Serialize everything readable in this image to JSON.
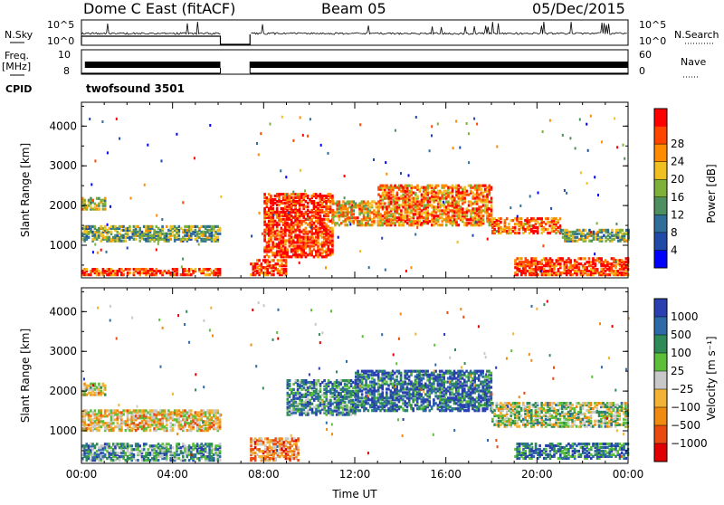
{
  "header": {
    "station": "Dome C East (fitACF)",
    "beam": "Beam 05",
    "date": "05/Dec/2015"
  },
  "strip_labels": {
    "nsky": "N.Sky",
    "nsky_ticks": [
      "10^5",
      "10^0"
    ],
    "nsearch": "N.Search",
    "freq": "Freq.",
    "freq_unit": "[MHz]",
    "freq_ticks": [
      "10",
      "8"
    ],
    "nave": "Nave",
    "nave_ticks": [
      "60",
      "0"
    ],
    "cpid": "CPID",
    "cpid_value": "twofsound 3501"
  },
  "colors": {
    "power": [
      "#0000ff",
      "#1f4aa8",
      "#2f6e9a",
      "#4e8f5f",
      "#7fb13a",
      "#f0c020",
      "#ff8c00",
      "#ff4500",
      "#ff0000"
    ],
    "velocity": [
      "#2a3fb0",
      "#2d6aa8",
      "#2e8b57",
      "#5cbf3a",
      "#c8c8c8",
      "#f2b233",
      "#f08a10",
      "#e84a10",
      "#e00000"
    ]
  },
  "chart_data": [
    {
      "type": "heatmap",
      "ylabel": "Slant Range [km]",
      "x_ticks": [
        "00:00",
        "04:00",
        "08:00",
        "12:00",
        "16:00",
        "20:00",
        "00:00"
      ],
      "xlim_hours": [
        0,
        24
      ],
      "y_ticks": [
        1000,
        2000,
        3000,
        4000
      ],
      "ylim_km": [
        180,
        4600
      ],
      "data_gap_hours": [
        6.1,
        7.4
      ],
      "colorbar": {
        "label": "Power [dB]",
        "ticks": [
          4,
          8,
          12,
          16,
          20,
          24,
          28
        ],
        "range": [
          0,
          30
        ]
      },
      "echo_regions": [
        {
          "t": [
            0.0,
            6.1
          ],
          "r": [
            250,
            400
          ],
          "level": 0.85
        },
        {
          "t": [
            0.0,
            6.1
          ],
          "r": [
            1100,
            1500
          ],
          "level": 0.45
        },
        {
          "t": [
            0.0,
            1.0
          ],
          "r": [
            1900,
            2200
          ],
          "level": 0.55
        },
        {
          "t": [
            7.4,
            9.0
          ],
          "r": [
            250,
            650
          ],
          "level": 0.85
        },
        {
          "t": [
            8.0,
            11.0
          ],
          "r": [
            700,
            2300
          ],
          "level": 0.9
        },
        {
          "t": [
            11.0,
            13.0
          ],
          "r": [
            1500,
            2100
          ],
          "level": 0.65
        },
        {
          "t": [
            13.0,
            18.0
          ],
          "r": [
            1500,
            2500
          ],
          "level": 0.75
        },
        {
          "t": [
            18.0,
            21.0
          ],
          "r": [
            1300,
            1700
          ],
          "level": 0.8
        },
        {
          "t": [
            21.0,
            24.0
          ],
          "r": [
            1100,
            1400
          ],
          "level": 0.45
        },
        {
          "t": [
            19.0,
            24.0
          ],
          "r": [
            250,
            700
          ],
          "level": 0.85
        }
      ]
    },
    {
      "type": "heatmap",
      "ylabel": "Slant Range [km]",
      "xlabel": "Time UT",
      "x_ticks": [
        "00:00",
        "04:00",
        "08:00",
        "12:00",
        "16:00",
        "20:00",
        "00:00"
      ],
      "xlim_hours": [
        0,
        24
      ],
      "y_ticks": [
        1000,
        2000,
        3000,
        4000
      ],
      "ylim_km": [
        180,
        4600
      ],
      "data_gap_hours": [
        6.1,
        7.4
      ],
      "colorbar": {
        "label": "Velocity [m s⁻¹]",
        "ticks": [
          "1000",
          "500",
          "100",
          "25",
          "−25",
          "−100",
          "−500",
          "−1000"
        ]
      },
      "echo_regions": [
        {
          "t": [
            0.0,
            6.1
          ],
          "r": [
            250,
            700
          ],
          "level": 0.3
        },
        {
          "t": [
            0.0,
            6.1
          ],
          "r": [
            1000,
            1500
          ],
          "level": 0.6
        },
        {
          "t": [
            0.0,
            1.0
          ],
          "r": [
            1900,
            2200
          ],
          "level": 0.55
        },
        {
          "t": [
            7.4,
            9.5
          ],
          "r": [
            250,
            800
          ],
          "level": 0.7
        },
        {
          "t": [
            9.0,
            12.0
          ],
          "r": [
            1400,
            2300
          ],
          "level": 0.25
        },
        {
          "t": [
            12.0,
            18.0
          ],
          "r": [
            1500,
            2500
          ],
          "level": 0.15
        },
        {
          "t": [
            18.0,
            24.0
          ],
          "r": [
            1100,
            1700
          ],
          "level": 0.45
        },
        {
          "t": [
            19.0,
            24.0
          ],
          "r": [
            300,
            700
          ],
          "level": 0.2
        }
      ]
    }
  ]
}
